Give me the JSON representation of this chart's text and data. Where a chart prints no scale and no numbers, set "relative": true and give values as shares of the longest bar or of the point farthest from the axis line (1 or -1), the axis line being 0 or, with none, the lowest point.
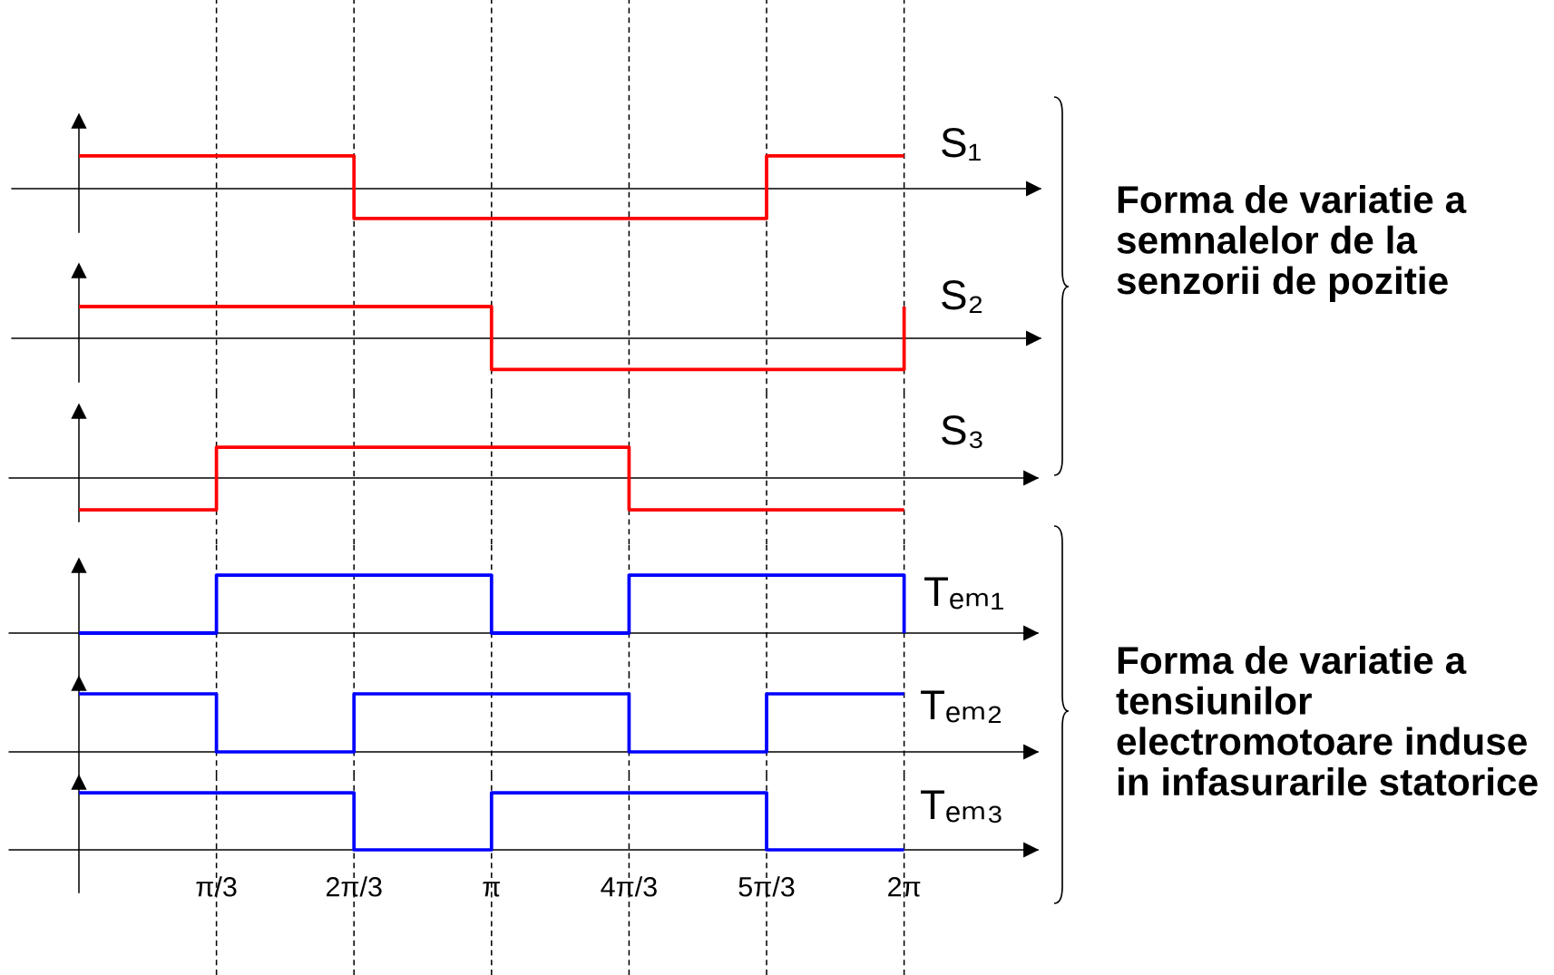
{
  "chart_data": [
    {
      "type": "step",
      "x": [
        0,
        1.0472,
        2.0944,
        3.1416,
        4.1888,
        5.236,
        6.2832
      ],
      "relative": true,
      "series": [
        {
          "name": "S₁",
          "color": "#ff0000",
          "values": [
            1,
            1,
            -0.91,
            -0.91,
            -0.91,
            1,
            1
          ]
        }
      ],
      "xlim": [
        -0.51,
        7.32
      ],
      "xticks": [
        {
          "value": 1.0472,
          "label": "π/3"
        },
        {
          "value": 2.0944,
          "label": "2π/3"
        },
        {
          "value": 3.1416,
          "label": "π"
        },
        {
          "value": 4.1888,
          "label": "4π/3"
        },
        {
          "value": 5.236,
          "label": "5π/3"
        },
        {
          "value": 6.2832,
          "label": "2π"
        }
      ],
      "grid": "x",
      "tick_labels": false
    },
    {
      "type": "step",
      "x": [
        0,
        1.0472,
        2.0944,
        3.1416,
        4.1888,
        5.236,
        6.2832
      ],
      "relative": true,
      "series": [
        {
          "name": "S₂",
          "color": "#ff0000",
          "values": [
            1,
            1,
            1,
            -0.98,
            -0.98,
            -0.98,
            1
          ]
        }
      ],
      "xlim": [
        -0.51,
        7.32
      ],
      "xticks": [
        {
          "value": 1.0472,
          "label": "π/3"
        },
        {
          "value": 2.0944,
          "label": "2π/3"
        },
        {
          "value": 3.1416,
          "label": "π"
        },
        {
          "value": 4.1888,
          "label": "4π/3"
        },
        {
          "value": 5.236,
          "label": "5π/3"
        },
        {
          "value": 6.2832,
          "label": "2π"
        }
      ],
      "grid": "x",
      "tick_labels": false,
      "annotations": [
        "Forma de variatie a\nsemnalelor de la\nsenzorii de pozitie"
      ]
    },
    {
      "type": "step",
      "x": [
        0,
        1.0472,
        2.0944,
        3.1416,
        4.1888,
        5.236,
        6.2832
      ],
      "relative": true,
      "series": [
        {
          "name": "S₃",
          "color": "#ff0000",
          "values": [
            -1,
            0.97,
            0.97,
            0.97,
            -1,
            -1,
            -1
          ]
        }
      ],
      "xlim": [
        -0.53,
        7.3
      ],
      "xticks": [
        {
          "value": 1.0472,
          "label": "π/3"
        },
        {
          "value": 2.0944,
          "label": "2π/3"
        },
        {
          "value": 3.1416,
          "label": "π"
        },
        {
          "value": 4.1888,
          "label": "4π/3"
        },
        {
          "value": 5.236,
          "label": "5π/3"
        },
        {
          "value": 6.2832,
          "label": "2π"
        }
      ],
      "grid": "x",
      "tick_labels": false
    },
    {
      "type": "step",
      "x": [
        0,
        1.0472,
        2.0944,
        3.1416,
        4.1888,
        5.236,
        6.2832
      ],
      "relative": true,
      "series": [
        {
          "name": "Tₑₘ₁",
          "color": "#0000ff",
          "values": [
            0,
            1,
            1,
            0,
            1,
            1,
            0
          ]
        }
      ],
      "xlim": [
        -0.53,
        7.3
      ],
      "xticks": [
        {
          "value": 1.0472,
          "label": "π/3"
        },
        {
          "value": 2.0944,
          "label": "2π/3"
        },
        {
          "value": 3.1416,
          "label": "π"
        },
        {
          "value": 4.1888,
          "label": "4π/3"
        },
        {
          "value": 5.236,
          "label": "5π/3"
        },
        {
          "value": 6.2832,
          "label": "2π"
        }
      ],
      "grid": "x",
      "tick_labels": false
    },
    {
      "type": "step",
      "x": [
        0,
        1.0472,
        2.0944,
        3.1416,
        4.1888,
        5.236,
        6.2832
      ],
      "relative": true,
      "series": [
        {
          "name": "Tₑₘ₂",
          "color": "#0000ff",
          "values": [
            1,
            0,
            1,
            1,
            0,
            1,
            1
          ]
        }
      ],
      "xlim": [
        -0.53,
        7.3
      ],
      "xticks": [
        {
          "value": 1.0472,
          "label": "π/3"
        },
        {
          "value": 2.0944,
          "label": "2π/3"
        },
        {
          "value": 3.1416,
          "label": "π"
        },
        {
          "value": 4.1888,
          "label": "4π/3"
        },
        {
          "value": 5.236,
          "label": "5π/3"
        },
        {
          "value": 6.2832,
          "label": "2π"
        }
      ],
      "grid": "x",
      "tick_labels": false,
      "annotations": [
        "Forma de variatie a\ntensiunilor\nelectromotoare induse\nin infasurarile statorice"
      ]
    },
    {
      "type": "step",
      "x": [
        0,
        1.0472,
        2.0944,
        3.1416,
        4.1888,
        5.236,
        6.2832
      ],
      "relative": true,
      "series": [
        {
          "name": "Tₑₘ₃",
          "color": "#0000ff",
          "values": [
            1,
            1,
            0,
            1,
            1,
            0,
            0
          ]
        }
      ],
      "xlim": [
        -0.53,
        7.3
      ],
      "xticks": [
        {
          "value": 1.0472,
          "label": "π/3"
        },
        {
          "value": 2.0944,
          "label": "2π/3"
        },
        {
          "value": 3.1416,
          "label": "π"
        },
        {
          "value": 4.1888,
          "label": "4π/3"
        },
        {
          "value": 5.236,
          "label": "5π/3"
        },
        {
          "value": 6.2832,
          "label": "2π"
        }
      ],
      "grid": "x",
      "tick_labels": "x"
    }
  ]
}
